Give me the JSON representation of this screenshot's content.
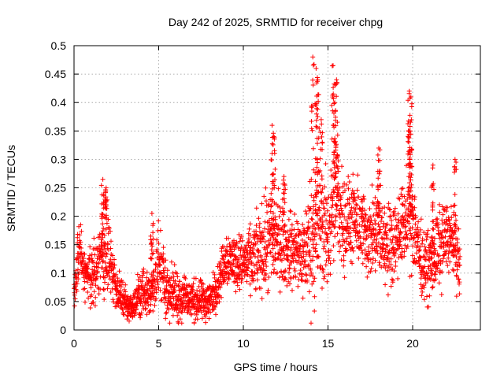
{
  "chart_data": {
    "type": "scatter",
    "title": "Day 242 of 2025, SRMTID for receiver chpg",
    "xlabel": "GPS time / hours",
    "ylabel": "SRMTID / TECUs",
    "xlim": [
      0,
      24
    ],
    "ylim": [
      0,
      0.5
    ],
    "xticks": [
      0,
      5,
      10,
      15,
      20
    ],
    "xtick_labels": [
      "0",
      "5",
      "10",
      "15",
      "20"
    ],
    "yticks": [
      0,
      0.05,
      0.1,
      0.15,
      0.2,
      0.25,
      0.3,
      0.35,
      0.4,
      0.45,
      0.5
    ],
    "ytick_labels": [
      "0",
      "0.05",
      "0.1",
      "0.15",
      "0.2",
      "0.25",
      "0.3",
      "0.35",
      "0.4",
      "0.45",
      "0.5"
    ],
    "grid": true,
    "marker": "+",
    "color": "#ff0000",
    "series": [
      {
        "name": "SRMTID",
        "profile": {
          "x": [
            0.0,
            0.3,
            0.6,
            1.0,
            1.5,
            2.0,
            2.5,
            3.0,
            3.5,
            4.0,
            4.5,
            5.0,
            5.5,
            6.0,
            6.5,
            7.0,
            7.5,
            8.0,
            8.5,
            9.0,
            9.5,
            10.0,
            10.5,
            11.0,
            11.5,
            12.0,
            12.5,
            13.0,
            13.5,
            14.0,
            14.5,
            15.0,
            15.5,
            16.0,
            16.5,
            17.0,
            17.5,
            18.0,
            18.5,
            19.0,
            19.5,
            20.0,
            20.5,
            21.0,
            21.5,
            22.0,
            22.5,
            22.8
          ],
          "median": [
            0.06,
            0.14,
            0.1,
            0.09,
            0.12,
            0.13,
            0.07,
            0.05,
            0.04,
            0.07,
            0.06,
            0.12,
            0.07,
            0.06,
            0.06,
            0.05,
            0.05,
            0.05,
            0.08,
            0.13,
            0.12,
            0.12,
            0.12,
            0.14,
            0.15,
            0.16,
            0.14,
            0.14,
            0.13,
            0.16,
            0.18,
            0.17,
            0.23,
            0.19,
            0.19,
            0.18,
            0.16,
            0.17,
            0.15,
            0.16,
            0.19,
            0.2,
            0.12,
            0.11,
            0.14,
            0.17,
            0.15,
            0.1
          ],
          "spread": [
            0.03,
            0.05,
            0.03,
            0.04,
            0.05,
            0.07,
            0.03,
            0.02,
            0.02,
            0.04,
            0.03,
            0.06,
            0.04,
            0.04,
            0.04,
            0.03,
            0.03,
            0.03,
            0.03,
            0.04,
            0.04,
            0.04,
            0.05,
            0.06,
            0.08,
            0.07,
            0.05,
            0.06,
            0.06,
            0.1,
            0.1,
            0.08,
            0.09,
            0.07,
            0.06,
            0.06,
            0.06,
            0.07,
            0.06,
            0.06,
            0.06,
            0.08,
            0.05,
            0.05,
            0.06,
            0.05,
            0.05,
            0.04
          ]
        },
        "peaks": [
          {
            "x": 1.7,
            "y": 0.265
          },
          {
            "x": 1.9,
            "y": 0.25
          },
          {
            "x": 4.6,
            "y": 0.205
          },
          {
            "x": 11.7,
            "y": 0.36
          },
          {
            "x": 11.8,
            "y": 0.34
          },
          {
            "x": 12.4,
            "y": 0.27
          },
          {
            "x": 14.1,
            "y": 0.48
          },
          {
            "x": 14.3,
            "y": 0.46
          },
          {
            "x": 14.4,
            "y": 0.44
          },
          {
            "x": 14.6,
            "y": 0.37
          },
          {
            "x": 15.3,
            "y": 0.465
          },
          {
            "x": 15.5,
            "y": 0.44
          },
          {
            "x": 15.4,
            "y": 0.4
          },
          {
            "x": 18.0,
            "y": 0.32
          },
          {
            "x": 19.8,
            "y": 0.42
          },
          {
            "x": 19.9,
            "y": 0.41
          },
          {
            "x": 19.85,
            "y": 0.35
          },
          {
            "x": 22.5,
            "y": 0.3
          },
          {
            "x": 21.2,
            "y": 0.29
          }
        ]
      }
    ]
  }
}
